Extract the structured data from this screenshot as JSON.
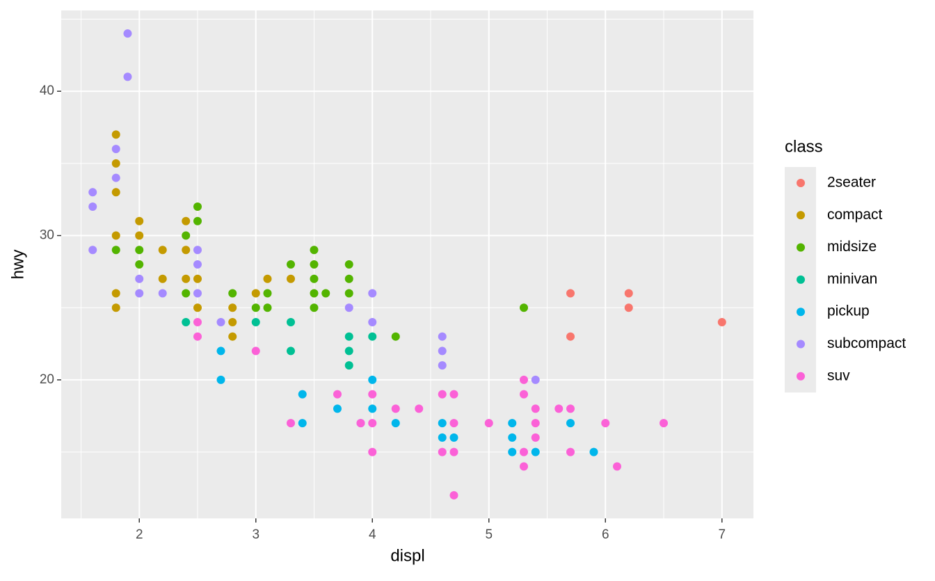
{
  "chart_data": {
    "type": "scatter",
    "x_label": "displ",
    "y_label": "hwy",
    "legend_title": "class",
    "legend_position": "right",
    "grid": true,
    "xlim": [
      1.33,
      7.27
    ],
    "ylim": [
      10.4,
      45.6
    ],
    "xticks": [
      2,
      3,
      4,
      5,
      6,
      7
    ],
    "yticks": [
      20,
      30,
      40
    ],
    "series": [
      {
        "name": "2seater",
        "color": "#F8766D",
        "x": [
          5.7,
          5.7,
          6.2,
          6.2,
          7.0
        ],
        "values": [
          26,
          23,
          26,
          25,
          24
        ]
      },
      {
        "name": "compact",
        "color": "#C49A00",
        "x": [
          1.8,
          1.8,
          1.8,
          1.8,
          1.8,
          1.8,
          2.0,
          2.0,
          2.2,
          2.2,
          2.4,
          2.4,
          2.4,
          2.5,
          2.5,
          2.8,
          2.8,
          2.8,
          3.0,
          3.1,
          3.3
        ],
        "values": [
          37,
          35,
          33,
          30,
          26,
          25,
          31,
          30,
          29,
          27,
          31,
          29,
          27,
          27,
          25,
          25,
          24,
          23,
          26,
          27,
          27
        ]
      },
      {
        "name": "midsize",
        "color": "#53B400",
        "x": [
          1.8,
          2.0,
          2.0,
          2.4,
          2.4,
          2.5,
          2.5,
          2.8,
          3.0,
          3.1,
          3.1,
          3.3,
          3.5,
          3.5,
          3.5,
          3.5,
          3.5,
          3.6,
          3.8,
          3.8,
          3.8,
          4.2,
          5.3
        ],
        "values": [
          29,
          29,
          28,
          30,
          26,
          32,
          31,
          26,
          25,
          26,
          25,
          28,
          29,
          28,
          27,
          26,
          25,
          26,
          28,
          27,
          26,
          23,
          25
        ]
      },
      {
        "name": "minivan",
        "color": "#00C094",
        "x": [
          2.4,
          3.0,
          3.3,
          3.3,
          3.8,
          3.8,
          3.8,
          4.0
        ],
        "values": [
          24,
          24,
          24,
          22,
          23,
          22,
          21,
          23
        ]
      },
      {
        "name": "pickup",
        "color": "#00B6EB",
        "x": [
          2.7,
          2.7,
          3.4,
          3.4,
          3.7,
          4.0,
          4.0,
          4.2,
          4.6,
          4.6,
          4.7,
          5.2,
          5.2,
          5.2,
          5.4,
          5.7,
          5.9
        ],
        "values": [
          22,
          20,
          19,
          17,
          18,
          20,
          18,
          17,
          17,
          16,
          16,
          17,
          16,
          15,
          15,
          17,
          15
        ]
      },
      {
        "name": "subcompact",
        "color": "#A58AFF",
        "x": [
          1.6,
          1.6,
          1.6,
          1.8,
          1.8,
          1.9,
          1.9,
          2.0,
          2.0,
          2.2,
          2.5,
          2.5,
          2.5,
          2.7,
          3.8,
          3.9,
          4.0,
          4.0,
          4.6,
          4.6,
          4.6,
          5.4
        ],
        "values": [
          33,
          32,
          29,
          36,
          34,
          44,
          41,
          27,
          26,
          26,
          29,
          28,
          26,
          24,
          25,
          17,
          26,
          24,
          23,
          22,
          21,
          20
        ]
      },
      {
        "name": "suv",
        "color": "#FB61D7",
        "x": [
          2.5,
          2.5,
          3.0,
          3.3,
          3.7,
          3.9,
          4.0,
          4.0,
          4.0,
          4.2,
          4.4,
          4.6,
          4.6,
          4.7,
          4.7,
          4.7,
          4.7,
          5.0,
          5.3,
          5.3,
          5.3,
          5.3,
          5.4,
          5.4,
          5.4,
          5.6,
          5.7,
          5.7,
          6.0,
          6.1,
          6.5
        ],
        "values": [
          24,
          23,
          22,
          17,
          19,
          17,
          19,
          17,
          15,
          18,
          18,
          19,
          15,
          19,
          17,
          15,
          12,
          17,
          20,
          19,
          15,
          14,
          18,
          17,
          16,
          18,
          18,
          15,
          17,
          14,
          17
        ]
      }
    ]
  }
}
